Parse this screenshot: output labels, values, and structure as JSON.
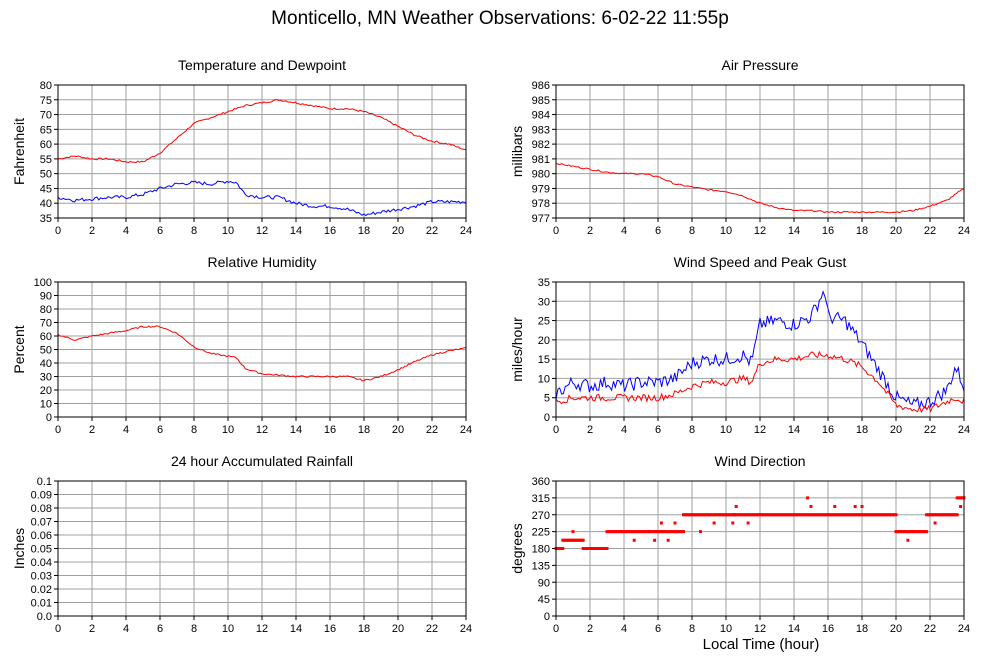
{
  "title": "Monticello, MN Weather Observations: 6-02-22 11:55p",
  "shared_xlabel": "Local Time (hour)",
  "colors": {
    "red": "#ff0000",
    "blue": "#0000ff",
    "grid": "#a0a0a0"
  },
  "chart_data": [
    {
      "type": "line",
      "title": "Temperature and Dewpoint",
      "ylabel": "Fahrenheit",
      "xlim": [
        0,
        24
      ],
      "ylim": [
        35,
        80
      ],
      "xticks": [
        "0",
        "2",
        "4",
        "6",
        "8",
        "10",
        "12",
        "14",
        "16",
        "18",
        "20",
        "22",
        "24"
      ],
      "yticks": [
        "35",
        "40",
        "45",
        "50",
        "55",
        "60",
        "65",
        "70",
        "75",
        "80"
      ],
      "grid": true,
      "series": [
        {
          "color": "#ff0000",
          "x": [
            0,
            1,
            2,
            3,
            4,
            5,
            6,
            7,
            8,
            9,
            10,
            11,
            12,
            13,
            14,
            15,
            16,
            17,
            18,
            19,
            20,
            21,
            22,
            23,
            24
          ],
          "y": [
            55,
            56,
            55,
            55,
            54,
            54,
            57,
            62,
            67,
            69,
            71,
            73,
            74,
            75,
            74,
            73,
            72,
            72,
            71,
            69,
            66,
            63,
            61,
            60,
            58
          ]
        },
        {
          "color": "#0000ff",
          "x": [
            0,
            1,
            2,
            3,
            4,
            5,
            6,
            7,
            8,
            9,
            10,
            10.5,
            11,
            12,
            13,
            14,
            15,
            16,
            17,
            18,
            19,
            20,
            21,
            22,
            23,
            24
          ],
          "y": [
            42,
            41,
            41.5,
            42,
            42,
            43,
            45,
            46.5,
            47,
            46.5,
            47.5,
            47,
            43,
            42,
            42,
            40,
            39,
            39,
            38,
            36,
            37,
            38,
            39,
            40.5,
            40.5,
            40.5
          ]
        }
      ]
    },
    {
      "type": "line",
      "title": "Air Pressure",
      "ylabel": "millibars",
      "xlim": [
        0,
        24
      ],
      "ylim": [
        977,
        986
      ],
      "xticks": [
        "0",
        "2",
        "4",
        "6",
        "8",
        "10",
        "12",
        "14",
        "16",
        "18",
        "20",
        "22",
        "24"
      ],
      "yticks": [
        "977",
        "978",
        "979",
        "980",
        "981",
        "982",
        "983",
        "984",
        "985",
        "986"
      ],
      "grid": true,
      "series": [
        {
          "color": "#ff0000",
          "x": [
            0,
            1,
            2,
            3,
            4,
            5,
            6,
            7,
            8,
            9,
            10,
            11,
            12,
            13,
            14,
            15,
            16,
            17,
            18,
            19,
            20,
            21,
            22,
            23,
            24
          ],
          "y": [
            980.7,
            980.5,
            980.3,
            980.1,
            980.0,
            980.0,
            979.8,
            979.3,
            979.1,
            978.9,
            978.8,
            978.5,
            978.0,
            977.7,
            977.5,
            977.5,
            977.4,
            977.4,
            977.4,
            977.4,
            977.4,
            977.5,
            977.8,
            978.2,
            979.0
          ]
        }
      ]
    },
    {
      "type": "line",
      "title": "Relative Humidity",
      "ylabel": "Percent",
      "xlim": [
        0,
        24
      ],
      "ylim": [
        0,
        100
      ],
      "xticks": [
        "0",
        "2",
        "4",
        "6",
        "8",
        "10",
        "12",
        "14",
        "16",
        "18",
        "20",
        "22",
        "24"
      ],
      "yticks": [
        "0",
        "10",
        "20",
        "30",
        "40",
        "50",
        "60",
        "70",
        "80",
        "90",
        "100"
      ],
      "grid": true,
      "series": [
        {
          "color": "#ff0000",
          "x": [
            0,
            1,
            2,
            3,
            4,
            5,
            6,
            7,
            8,
            9,
            10,
            10.5,
            11,
            12,
            13,
            14,
            15,
            16,
            17,
            18,
            19,
            20,
            21,
            22,
            23,
            24
          ],
          "y": [
            61,
            57,
            60,
            62,
            64,
            67,
            67,
            62,
            52,
            47,
            45,
            44,
            36,
            32,
            31,
            30,
            30,
            30,
            30,
            27,
            30,
            35,
            41,
            46,
            49,
            51
          ]
        }
      ]
    },
    {
      "type": "line",
      "title": "Wind Speed and Peak Gust",
      "ylabel": "miles/hour",
      "xlim": [
        0,
        24
      ],
      "ylim": [
        0,
        35
      ],
      "xticks": [
        "0",
        "2",
        "4",
        "6",
        "8",
        "10",
        "12",
        "14",
        "16",
        "18",
        "20",
        "22",
        "24"
      ],
      "yticks": [
        "0",
        "5",
        "10",
        "15",
        "20",
        "25",
        "30",
        "35"
      ],
      "grid": true,
      "series": [
        {
          "color": "#0000ff",
          "x": [
            0,
            1,
            2,
            3,
            4,
            5,
            6,
            7,
            8,
            9,
            10,
            11,
            11.5,
            12,
            13,
            14,
            15,
            15.8,
            16,
            17,
            18,
            19,
            20,
            21,
            22,
            23,
            23.5,
            24
          ],
          "y": [
            6,
            9,
            8,
            9,
            8,
            9,
            9,
            10,
            14,
            15,
            15,
            16,
            14,
            24,
            25,
            24,
            26,
            33,
            26,
            25,
            19,
            12,
            5,
            3,
            4,
            7,
            13,
            8
          ]
        },
        {
          "color": "#ff0000",
          "x": [
            0,
            1,
            2,
            3,
            4,
            5,
            6,
            7,
            8,
            9,
            10,
            11,
            11.5,
            12,
            13,
            14,
            15,
            16,
            17,
            18,
            19,
            20,
            21,
            22,
            23,
            23.5,
            24
          ],
          "y": [
            4,
            5,
            5,
            5,
            5,
            5,
            5,
            6,
            8,
            9,
            9,
            10,
            9,
            14,
            15,
            15,
            16,
            16,
            15,
            13,
            9,
            3,
            2,
            2,
            4,
            5,
            4
          ]
        }
      ]
    },
    {
      "type": "line",
      "title": "24 hour Accumulated Rainfall",
      "ylabel": "Inches",
      "xlim": [
        0,
        24
      ],
      "ylim": [
        0,
        0.1
      ],
      "xticks": [
        "0",
        "2",
        "4",
        "6",
        "8",
        "10",
        "12",
        "14",
        "16",
        "18",
        "20",
        "22",
        "24"
      ],
      "yticks": [
        "0.0",
        "0.01",
        "0.02",
        "0.03",
        "0.04",
        "0.05",
        "0.06",
        "0.07",
        "0.08",
        "0.09",
        "0.1"
      ],
      "grid": true,
      "series": [
        {
          "color": "#ff0000",
          "x": [
            0,
            24
          ],
          "y": [
            0,
            0
          ]
        }
      ]
    },
    {
      "type": "scatter",
      "title": "Wind Direction",
      "ylabel": "degrees",
      "xlim": [
        0,
        24
      ],
      "ylim": [
        0,
        360
      ],
      "xticks": [
        "0",
        "2",
        "4",
        "6",
        "8",
        "10",
        "12",
        "14",
        "16",
        "18",
        "20",
        "22",
        "24"
      ],
      "yticks": [
        "0",
        "45",
        "90",
        "135",
        "180",
        "225",
        "270",
        "315",
        "360"
      ],
      "grid": true,
      "series": [
        {
          "color": "#ff0000",
          "segments": [
            {
              "x0": 0.0,
              "x1": 0.4,
              "y": 180
            },
            {
              "x0": 0.4,
              "x1": 1.6,
              "y": 202
            },
            {
              "x0": 1.6,
              "x1": 3.0,
              "y": 180
            },
            {
              "x0": 3.0,
              "x1": 5.5,
              "y": 225
            },
            {
              "x0": 5.5,
              "x1": 7.5,
              "y": 225
            },
            {
              "x0": 7.5,
              "x1": 10.5,
              "y": 270
            },
            {
              "x0": 10.5,
              "x1": 12.0,
              "y": 270
            },
            {
              "x0": 12.0,
              "x1": 20.0,
              "y": 270
            },
            {
              "x0": 20.0,
              "x1": 21.0,
              "y": 225
            },
            {
              "x0": 21.0,
              "x1": 21.8,
              "y": 225
            },
            {
              "x0": 21.8,
              "x1": 23.6,
              "y": 270
            },
            {
              "x0": 23.6,
              "x1": 24.0,
              "y": 315
            }
          ],
          "points": [
            {
              "x": 1.0,
              "y": 225
            },
            {
              "x": 4.6,
              "y": 202
            },
            {
              "x": 5.8,
              "y": 202
            },
            {
              "x": 6.2,
              "y": 248
            },
            {
              "x": 6.6,
              "y": 202
            },
            {
              "x": 7.0,
              "y": 248
            },
            {
              "x": 8.5,
              "y": 225
            },
            {
              "x": 9.3,
              "y": 248
            },
            {
              "x": 10.4,
              "y": 248
            },
            {
              "x": 10.6,
              "y": 292
            },
            {
              "x": 11.3,
              "y": 248
            },
            {
              "x": 14.8,
              "y": 315
            },
            {
              "x": 15.0,
              "y": 292
            },
            {
              "x": 16.4,
              "y": 292
            },
            {
              "x": 17.6,
              "y": 292
            },
            {
              "x": 18.0,
              "y": 292
            },
            {
              "x": 20.7,
              "y": 202
            },
            {
              "x": 22.3,
              "y": 248
            },
            {
              "x": 23.8,
              "y": 292
            }
          ]
        }
      ]
    }
  ]
}
